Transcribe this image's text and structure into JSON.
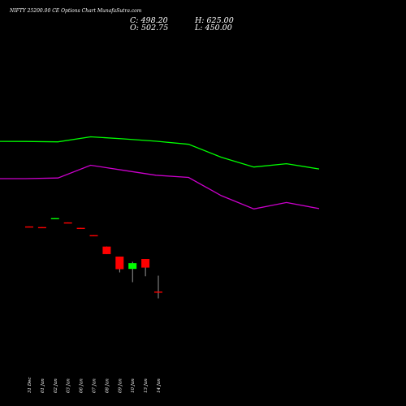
{
  "header": {
    "title": "NIFTY 25200.00  CE Options  Chart Munafa​Sutra.com",
    "close": "C: 498.20",
    "open": "O: 502.75",
    "high": "H: 625.00",
    "low": "L: 450.00"
  },
  "colors": {
    "background": "#000000",
    "up": "#00ff00",
    "down": "#ff0000",
    "upper_band": "#00ff00",
    "lower_band": "#cc00cc"
  },
  "chart_data": {
    "type": "candlestick",
    "categories": [
      "31 Dec",
      "01 Jan",
      "02 Jan",
      "03 Jan",
      "06 Jan",
      "07 Jan",
      "08 Jan",
      "09 Jan",
      "10 Jan",
      "13 Jan",
      "14 Jan"
    ],
    "candles": [
      {
        "date": "31 Dec",
        "open": 1004,
        "high": 1004,
        "low": 1000,
        "close": 1000
      },
      {
        "date": "01 Jan",
        "open": 999,
        "high": 999,
        "low": 995,
        "close": 995
      },
      {
        "date": "02 Jan",
        "open": 1064,
        "high": 1068,
        "low": 1064,
        "close": 1068
      },
      {
        "date": "03 Jan",
        "open": 1035,
        "high": 1035,
        "low": 1030,
        "close": 1030
      },
      {
        "date": "06 Jan",
        "open": 993,
        "high": 993,
        "low": 988,
        "close": 988
      },
      {
        "date": "07 Jan",
        "open": 937,
        "high": 937,
        "low": 930,
        "close": 930
      },
      {
        "date": "08 Jan",
        "open": 849,
        "high": 849,
        "low": 791,
        "close": 791
      },
      {
        "date": "09 Jan",
        "open": 772,
        "high": 772,
        "low": 650,
        "close": 675
      },
      {
        "date": "10 Jan",
        "open": 677,
        "high": 732,
        "low": 575,
        "close": 721
      },
      {
        "date": "13 Jan",
        "open": 753,
        "high": 753,
        "low": 620,
        "close": 687
      },
      {
        "date": "14 Jan",
        "open": 502.75,
        "high": 625,
        "low": 450,
        "close": 498.2
      }
    ],
    "upper_band": {
      "points": [
        {
          "date": "31 Dec",
          "value": 1659
        },
        {
          "date": "01 Jan",
          "value": 1658
        },
        {
          "date": "02 Jan",
          "value": 1655
        },
        {
          "date": "03 Jan",
          "value": 1694
        },
        {
          "date": "06 Jan",
          "value": 1678
        },
        {
          "date": "07 Jan",
          "value": 1660
        },
        {
          "date": "08 Jan",
          "value": 1636
        },
        {
          "date": "09 Jan",
          "value": 1537
        },
        {
          "date": "10 Jan",
          "value": 1461
        },
        {
          "date": "13 Jan",
          "value": 1487
        },
        {
          "date": "14 Jan",
          "value": 1446
        }
      ]
    },
    "lower_band": {
      "points": [
        {
          "date": "31 Dec",
          "value": 1372
        },
        {
          "date": "01 Jan",
          "value": 1372
        },
        {
          "date": "02 Jan",
          "value": 1377
        },
        {
          "date": "03 Jan",
          "value": 1475
        },
        {
          "date": "06 Jan",
          "value": 1436
        },
        {
          "date": "07 Jan",
          "value": 1398
        },
        {
          "date": "08 Jan",
          "value": 1381
        },
        {
          "date": "09 Jan",
          "value": 1241
        },
        {
          "date": "10 Jan",
          "value": 1139
        },
        {
          "date": "13 Jan",
          "value": 1188
        },
        {
          "date": "14 Jan",
          "value": 1141
        }
      ]
    },
    "grid": false
  }
}
